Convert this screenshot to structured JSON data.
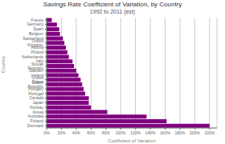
{
  "chart_data": {
    "type": "bar",
    "orientation": "horizontal",
    "title": "Savings Rate Coefficient of Variation, by Country",
    "subtitle": "1992 to 2011 (est)",
    "xlabel": "Coefficient of Variation",
    "ylabel": "Country",
    "color": "#800080",
    "categories": [
      "Denmark",
      "Finland",
      "Australia",
      "Korea",
      "Norway",
      "Japan",
      "Canada",
      "Portugal",
      "Hungary",
      "Czech Republic",
      "United States",
      "Ireland",
      "Sweden",
      "Slovak Republic",
      "Italy",
      "Netherlands",
      "Poland",
      "Austria",
      "United Kingdom",
      "Switzerland",
      "Belgium",
      "Spain",
      "Germany",
      "France"
    ],
    "values": [
      2.2,
      1.62,
      1.35,
      0.82,
      0.6,
      0.57,
      0.57,
      0.52,
      0.5,
      0.48,
      0.46,
      0.43,
      0.4,
      0.37,
      0.35,
      0.3,
      0.28,
      0.26,
      0.24,
      0.22,
      0.18,
      0.17,
      0.14,
      0.07
    ],
    "xlim": [
      0,
      2.3
    ],
    "xticks": [
      {
        "value": 0.0,
        "label": "0%"
      },
      {
        "value": 0.2,
        "label": "20%"
      },
      {
        "value": 0.4,
        "label": "40%"
      },
      {
        "value": 0.6,
        "label": "60%"
      },
      {
        "value": 0.8,
        "label": "80%"
      },
      {
        "value": 1.0,
        "label": "100%"
      },
      {
        "value": 1.2,
        "label": "120%"
      },
      {
        "value": 1.4,
        "label": "140%"
      },
      {
        "value": 1.6,
        "label": "160%"
      },
      {
        "value": 1.8,
        "label": "180%"
      },
      {
        "value": 2.0,
        "label": "200%"
      },
      {
        "value": 2.2,
        "label": "220%"
      }
    ],
    "grid": true
  }
}
